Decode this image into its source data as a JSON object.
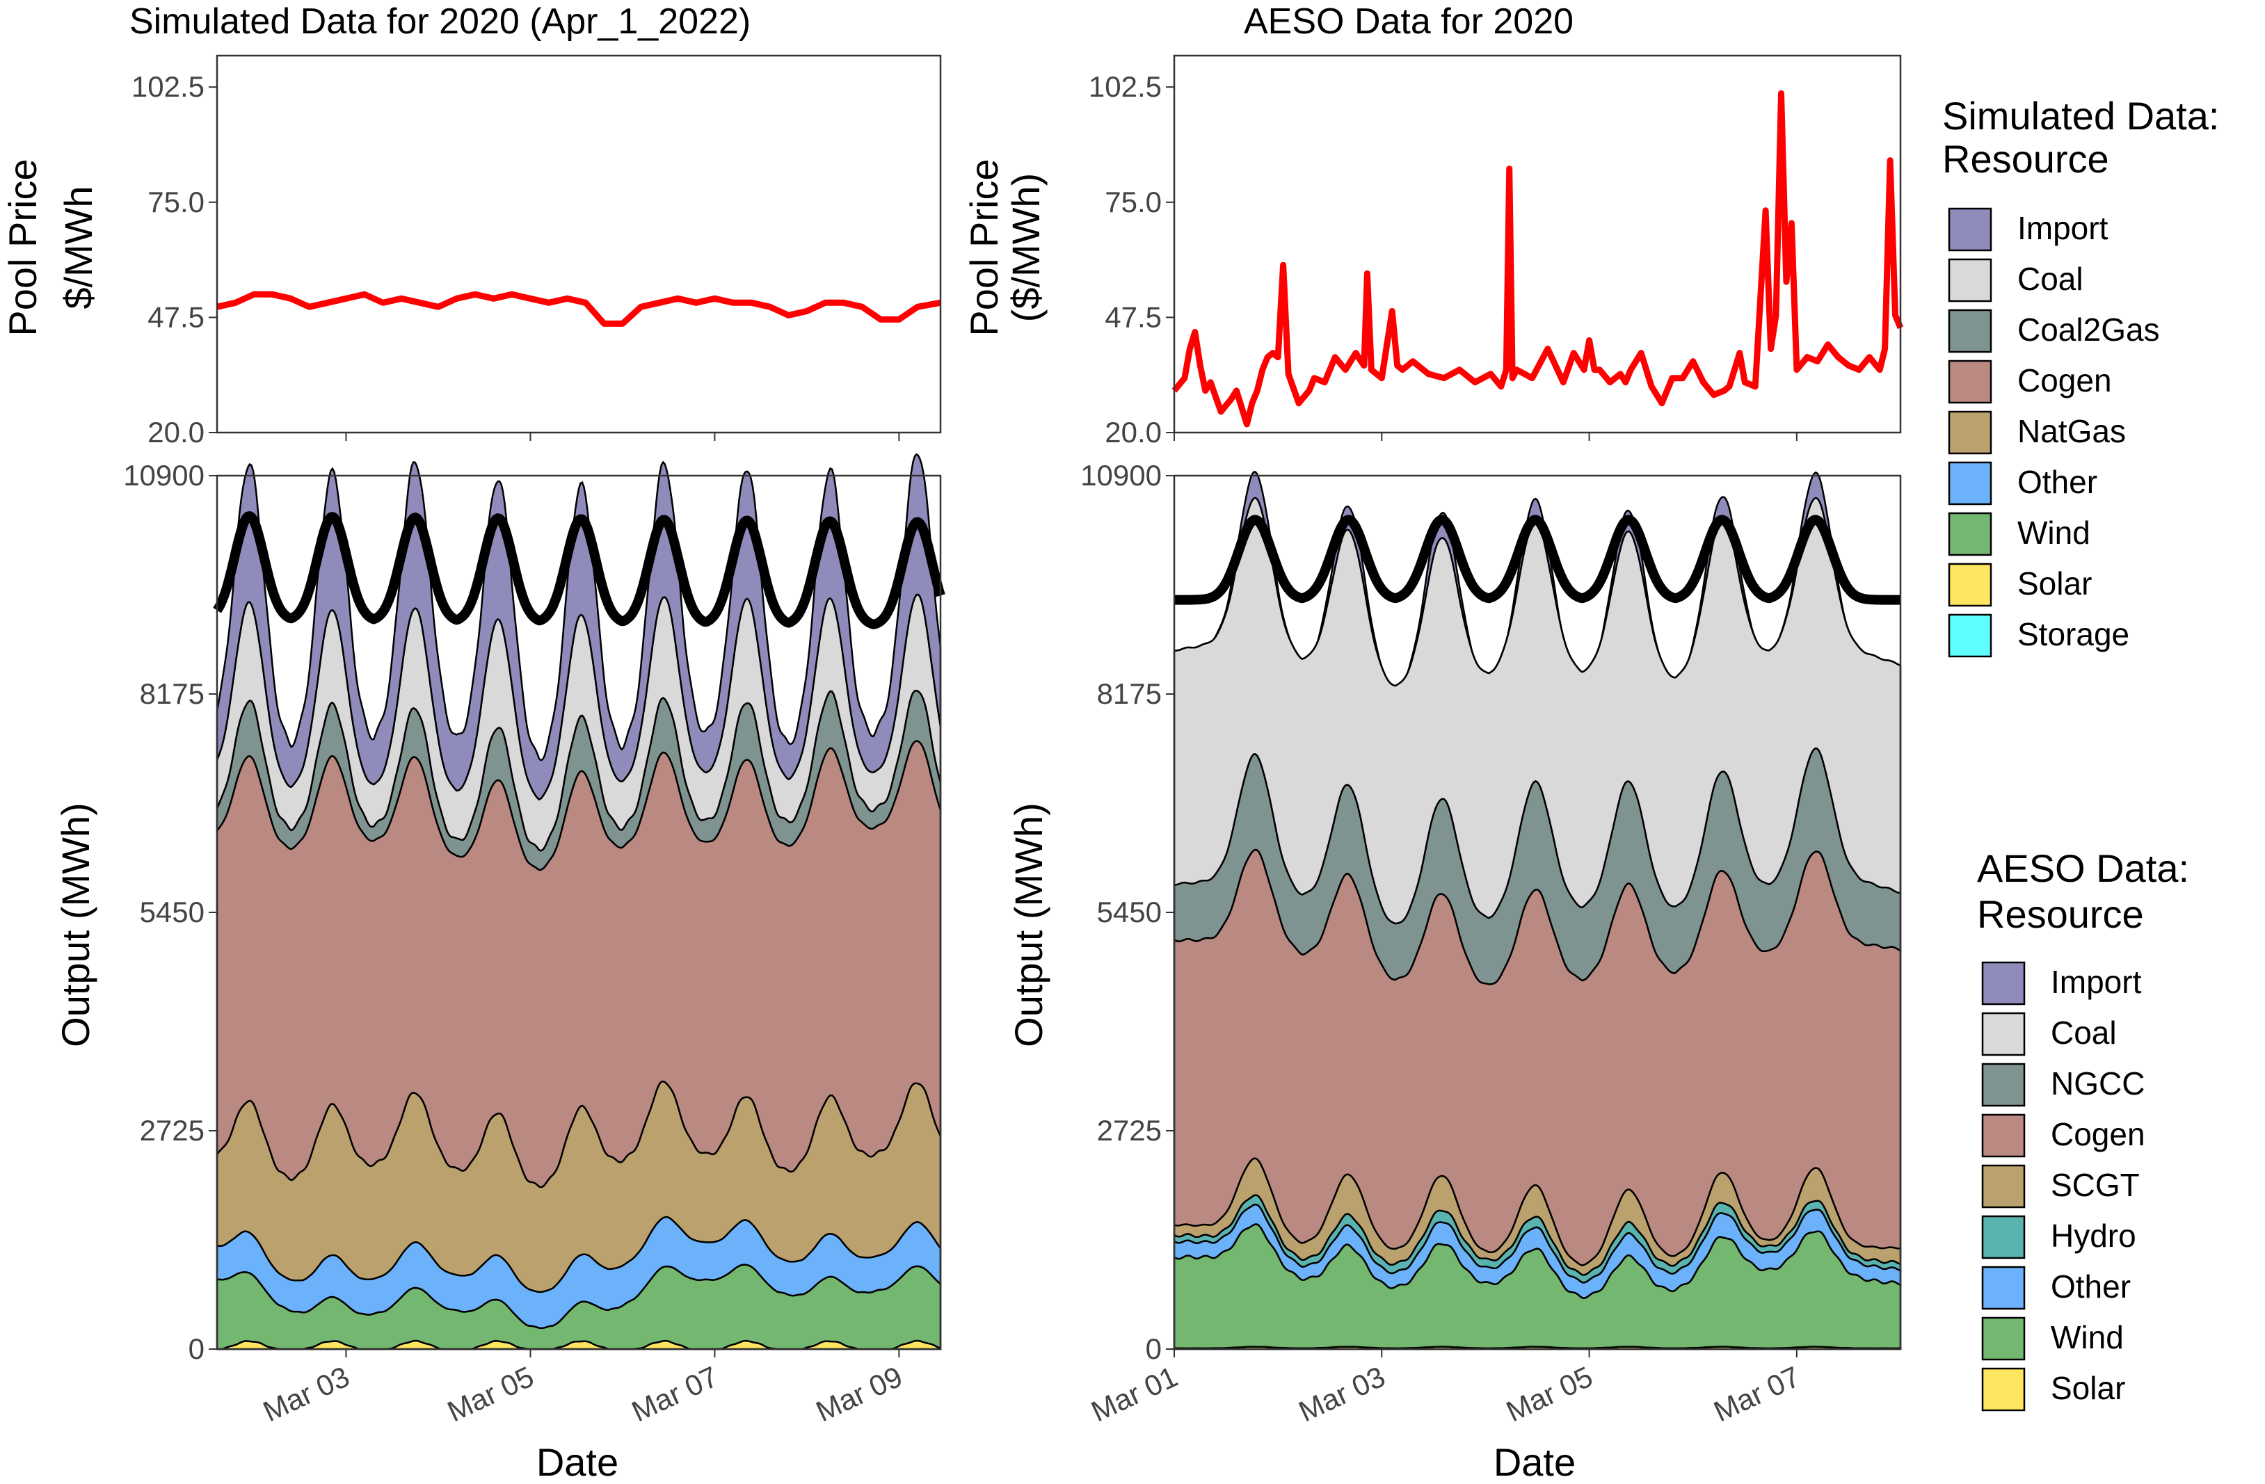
{
  "figure": {
    "left_title": "Simulated Data for 2020 (Apr_1_2022)",
    "right_title": "AESO Data for 2020",
    "x_label": "Date",
    "left_price_ylabel": [
      "Pool Price",
      "$/MWh"
    ],
    "right_price_ylabel": [
      "Pool Price",
      "($/MWh)"
    ],
    "output_ylabel": "Output (MWh)"
  },
  "legends": {
    "simulated": {
      "title": [
        "Simulated Data:",
        "Resource"
      ],
      "items": [
        {
          "label": "Import",
          "color": "#8F8BBB"
        },
        {
          "label": "Coal",
          "color": "#D9D9D9"
        },
        {
          "label": "Coal2Gas",
          "color": "#7F9390"
        },
        {
          "label": "Cogen",
          "color": "#BA8A82"
        },
        {
          "label": "NatGas",
          "color": "#BBA16D"
        },
        {
          "label": "Other",
          "color": "#6CB2FA"
        },
        {
          "label": "Wind",
          "color": "#74B770"
        },
        {
          "label": "Solar",
          "color": "#FFE660"
        },
        {
          "label": "Storage",
          "color": "#60FFFF"
        }
      ]
    },
    "aeso": {
      "title": [
        "AESO Data:",
        "Resource"
      ],
      "items": [
        {
          "label": "Import",
          "color": "#8F8BBB"
        },
        {
          "label": "Coal",
          "color": "#D9D9D9"
        },
        {
          "label": "NGCC",
          "color": "#7F9390"
        },
        {
          "label": "Cogen",
          "color": "#BA8A82"
        },
        {
          "label": "SCGT",
          "color": "#BBA16D"
        },
        {
          "label": "Hydro",
          "color": "#5AB3AF"
        },
        {
          "label": "Other",
          "color": "#6CB2FA"
        },
        {
          "label": "Wind",
          "color": "#74B770"
        },
        {
          "label": "Solar",
          "color": "#FFE660"
        }
      ]
    }
  },
  "chart_data": [
    {
      "type": "line",
      "panel": "simulated-price",
      "ylim": [
        20,
        110
      ],
      "yticks": [
        "20.0",
        "47.5",
        "75.0",
        "102.5"
      ],
      "xlim_days": [
        0.6,
        8.45
      ],
      "series": [
        {
          "color": "#FF0000",
          "x": [
            0.6,
            0.8,
            1.0,
            1.2,
            1.4,
            1.6,
            1.8,
            2.0,
            2.2,
            2.4,
            2.6,
            2.8,
            3.0,
            3.2,
            3.4,
            3.6,
            3.8,
            4.0,
            4.2,
            4.4,
            4.6,
            4.8,
            5.0,
            5.2,
            5.4,
            5.6,
            5.8,
            6.0,
            6.2,
            6.4,
            6.6,
            6.8,
            7.0,
            7.2,
            7.4,
            7.6,
            7.8,
            8.0,
            8.2,
            8.45
          ],
          "y": [
            50,
            51,
            53,
            53,
            52,
            50,
            51,
            52,
            53,
            51,
            52,
            51,
            50,
            52,
            53,
            52,
            53,
            52,
            51,
            52,
            51,
            46,
            46,
            50,
            51,
            52,
            51,
            52,
            51,
            51,
            50,
            48,
            49,
            51,
            51,
            50,
            47,
            47,
            50,
            51
          ]
        }
      ]
    },
    {
      "type": "area",
      "panel": "simulated-output",
      "stacked": true,
      "ylim": [
        0,
        10900
      ],
      "yticks": [
        "0",
        "2725",
        "5450",
        "8175",
        "10900"
      ],
      "xlim_days": [
        0.6,
        8.45
      ],
      "xticks": [
        {
          "day": 2,
          "label": "Mar 03"
        },
        {
          "day": 4,
          "label": "Mar 05"
        },
        {
          "day": 6,
          "label": "Mar 07"
        },
        {
          "day": 8,
          "label": "Mar 09"
        }
      ],
      "daily_peak_days": [
        0.95,
        1.85,
        2.75,
        3.65,
        4.55,
        5.45,
        6.35,
        7.25,
        8.2
      ],
      "series": [
        {
          "name": "Solar",
          "color": "#FFE660",
          "base": 40,
          "amp": 60,
          "var": 0,
          "trend": 0
        },
        {
          "name": "Wind",
          "color": "#74B770",
          "base": 650,
          "amp": 80,
          "var": 380,
          "trend": 0
        },
        {
          "name": "Other",
          "color": "#6CB2FA",
          "base": 500,
          "amp": 60,
          "var": 60,
          "trend": 0
        },
        {
          "name": "NatGas",
          "color": "#BBA16D",
          "base": 1500,
          "amp": 250,
          "var": 200,
          "trend": 0
        },
        {
          "name": "Cogen",
          "color": "#BA8A82",
          "base": 4100,
          "amp": 120,
          "var": 150,
          "trend": 0
        },
        {
          "name": "Coal2Gas",
          "color": "#7F9390",
          "base": 450,
          "amp": 220,
          "var": 60,
          "trend": 0
        },
        {
          "name": "Coal",
          "color": "#D9D9D9",
          "base": 900,
          "amp": 350,
          "var": 100,
          "trend": 0
        },
        {
          "name": "Import",
          "color": "#8F8BBB",
          "base": 1100,
          "amp": 600,
          "var": 150,
          "trend": 0
        }
      ],
      "demand": {
        "base": 9750,
        "amp": 650,
        "trend": -80
      }
    },
    {
      "type": "line",
      "panel": "aeso-price",
      "ylim": [
        20,
        110
      ],
      "yticks": [
        "20.0",
        "47.5",
        "75.0",
        "102.5"
      ],
      "xlim_days": [
        0.0,
        7.0
      ],
      "series": [
        {
          "color": "#FF0000",
          "x": [
            0.0,
            0.1,
            0.15,
            0.2,
            0.25,
            0.3,
            0.35,
            0.45,
            0.55,
            0.6,
            0.65,
            0.7,
            0.75,
            0.8,
            0.85,
            0.9,
            0.95,
            1.0,
            1.05,
            1.1,
            1.2,
            1.3,
            1.35,
            1.45,
            1.55,
            1.65,
            1.75,
            1.8,
            1.83,
            1.86,
            1.9,
            2.0,
            2.1,
            2.15,
            2.2,
            2.3,
            2.45,
            2.6,
            2.75,
            2.9,
            3.05,
            3.15,
            3.2,
            3.23,
            3.26,
            3.3,
            3.45,
            3.6,
            3.75,
            3.85,
            3.95,
            4.0,
            4.05,
            4.1,
            4.2,
            4.3,
            4.35,
            4.4,
            4.5,
            4.6,
            4.7,
            4.8,
            4.9,
            5.0,
            5.1,
            5.2,
            5.3,
            5.35,
            5.4,
            5.45,
            5.5,
            5.6,
            5.7,
            5.75,
            5.8,
            5.85,
            5.9,
            5.95,
            6.0,
            6.1,
            6.2,
            6.3,
            6.4,
            6.5,
            6.6,
            6.7,
            6.8,
            6.85,
            6.9,
            6.95,
            7.0
          ],
          "y": [
            30,
            33,
            40,
            44,
            36,
            30,
            32,
            25,
            28,
            30,
            26,
            22,
            27,
            30,
            35,
            38,
            39,
            38,
            60,
            34,
            27,
            30,
            33,
            32,
            38,
            35,
            39,
            37,
            36,
            58,
            35,
            33,
            49,
            36,
            35,
            37,
            34,
            33,
            35,
            32,
            34,
            31,
            35,
            83,
            33,
            35,
            33,
            40,
            32,
            39,
            35,
            42,
            35,
            35,
            32,
            34,
            32,
            35,
            39,
            31,
            27,
            33,
            33,
            37,
            32,
            29,
            30,
            31,
            35,
            39,
            32,
            31,
            73,
            40,
            48,
            101,
            56,
            70,
            35,
            38,
            37,
            41,
            38,
            36,
            35,
            38,
            35,
            40,
            85,
            48,
            45
          ]
        }
      ]
    },
    {
      "type": "area",
      "panel": "aeso-output",
      "stacked": true,
      "ylim": [
        0,
        10900
      ],
      "yticks": [
        "0",
        "2725",
        "5450",
        "8175",
        "10900"
      ],
      "xlim_days": [
        0.0,
        7.0
      ],
      "xticks": [
        {
          "day": 0,
          "label": "Mar 01"
        },
        {
          "day": 2,
          "label": "Mar 03"
        },
        {
          "day": 4,
          "label": "Mar 05"
        },
        {
          "day": 6,
          "label": "Mar 07"
        }
      ],
      "daily_peak_days": [
        0.78,
        1.68,
        2.58,
        3.48,
        4.38,
        5.28,
        6.18
      ],
      "series": [
        {
          "name": "Solar",
          "color": "#FFE660",
          "base": 20,
          "amp": 10,
          "var": 0,
          "trend": 0
        },
        {
          "name": "Wind",
          "color": "#74B770",
          "base": 1150,
          "amp": 250,
          "var": 250,
          "trend": -140
        },
        {
          "name": "Other",
          "color": "#6CB2FA",
          "base": 230,
          "amp": 40,
          "var": 30,
          "trend": 0
        },
        {
          "name": "Hydro",
          "color": "#5AB3AF",
          "base": 110,
          "amp": 20,
          "var": 20,
          "trend": 0
        },
        {
          "name": "SCGT",
          "color": "#BBA16D",
          "base": 280,
          "amp": 150,
          "var": 80,
          "trend": 0
        },
        {
          "name": "Cogen",
          "color": "#BA8A82",
          "base": 3650,
          "amp": 120,
          "var": 250,
          "trend": 0
        },
        {
          "name": "NGCC",
          "color": "#7F9390",
          "base": 1000,
          "amp": 220,
          "var": 150,
          "trend": 0
        },
        {
          "name": "Coal",
          "color": "#D9D9D9",
          "base": 3050,
          "amp": 120,
          "var": 120,
          "trend": 0
        },
        {
          "name": "Import",
          "color": "#8F8BBB",
          "base": 120,
          "amp": 180,
          "var": 40,
          "trend": 0
        }
      ],
      "demand": {
        "base": 9850,
        "amp": 500,
        "trend": 0
      }
    }
  ]
}
